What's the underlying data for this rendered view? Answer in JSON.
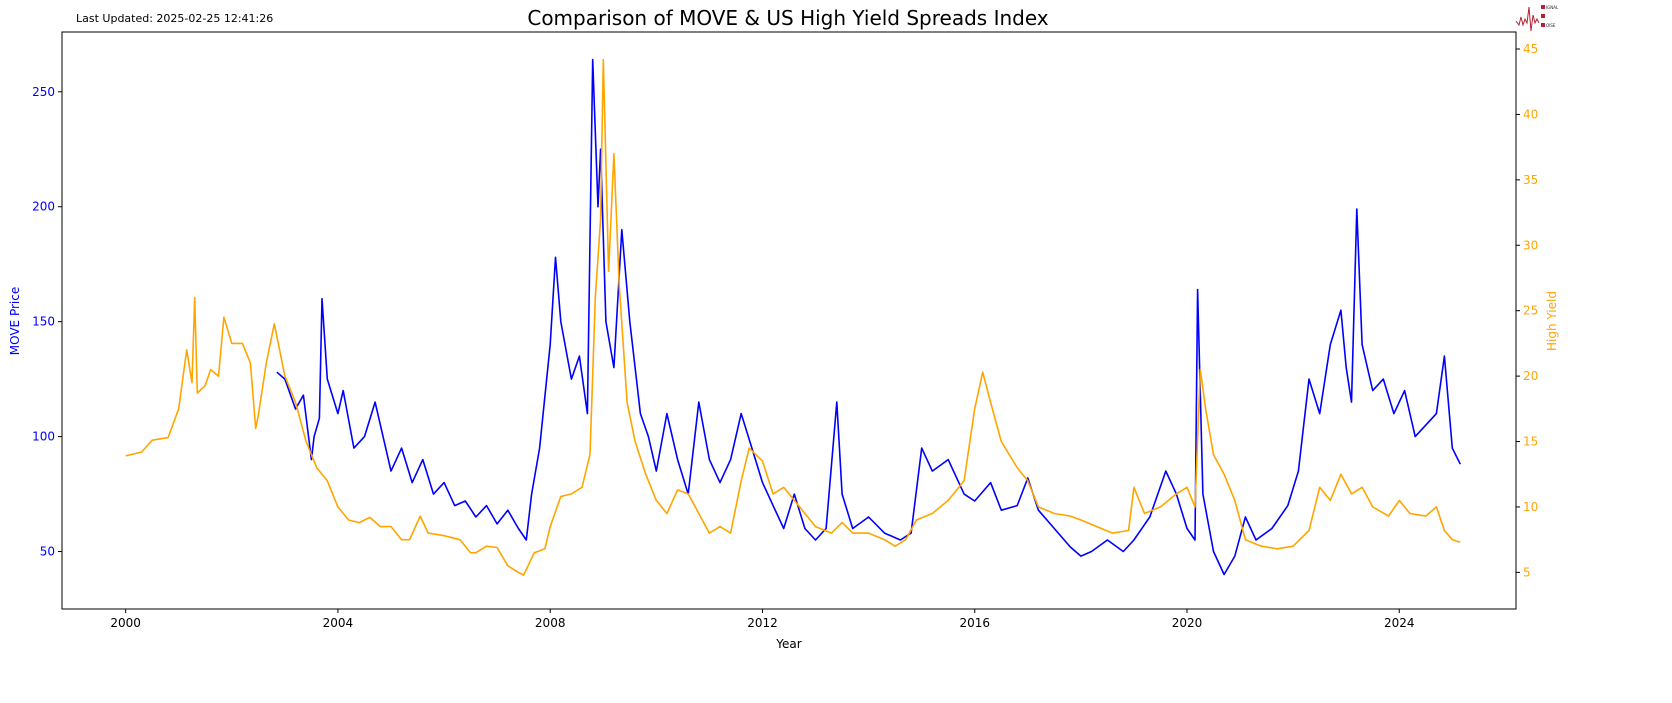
{
  "header": {
    "last_updated": "Last Updated: 2025-02-25 12:41:26"
  },
  "logo": {
    "text": "SIGNAL 2 NOISE",
    "color": "#b22234"
  },
  "chart_data": {
    "type": "line",
    "title": "Comparison of MOVE & US High Yield Spreads Index",
    "xlabel": "Year",
    "ylabel_left": "MOVE Price",
    "ylabel_right": "High Yield",
    "xlim": [
      1998.8,
      2026.2
    ],
    "ylim_left": [
      25,
      276
    ],
    "ylim_right": [
      2.2,
      46.3
    ],
    "x_ticks": [
      "2000",
      "2004",
      "2008",
      "2012",
      "2016",
      "2020",
      "2024"
    ],
    "y_ticks_left": [
      "50",
      "100",
      "150",
      "200",
      "250"
    ],
    "y_ticks_right": [
      "5",
      "10",
      "15",
      "20",
      "25",
      "30",
      "35",
      "40",
      "45"
    ],
    "grid": false,
    "colors": {
      "left_axis": "#0000ff",
      "right_axis": "#ffa500",
      "move": "#0000ff",
      "high_yield": "#ffa500"
    },
    "series": [
      {
        "axis": "left",
        "color": "#0000ff",
        "x": [
          2002.85,
          2003.0,
          2003.2,
          2003.35,
          2003.5,
          2003.55,
          2003.65,
          2003.7,
          2003.8,
          2004.0,
          2004.1,
          2004.3,
          2004.5,
          2004.7,
          2004.9,
          2005.0,
          2005.2,
          2005.4,
          2005.6,
          2005.8,
          2006.0,
          2006.2,
          2006.4,
          2006.6,
          2006.8,
          2007.0,
          2007.2,
          2007.4,
          2007.55,
          2007.65,
          2007.8,
          2008.0,
          2008.1,
          2008.2,
          2008.4,
          2008.55,
          2008.7,
          2008.8,
          2008.9,
          2008.95,
          2009.05,
          2009.2,
          2009.35,
          2009.5,
          2009.7,
          2009.85,
          2010.0,
          2010.2,
          2010.4,
          2010.6,
          2010.8,
          2011.0,
          2011.2,
          2011.4,
          2011.6,
          2011.8,
          2012.0,
          2012.2,
          2012.4,
          2012.6,
          2012.8,
          2013.0,
          2013.2,
          2013.4,
          2013.5,
          2013.7,
          2014.0,
          2014.3,
          2014.6,
          2014.8,
          2015.0,
          2015.2,
          2015.5,
          2015.8,
          2016.0,
          2016.3,
          2016.5,
          2016.8,
          2017.0,
          2017.2,
          2017.5,
          2017.8,
          2018.0,
          2018.2,
          2018.5,
          2018.8,
          2019.0,
          2019.3,
          2019.6,
          2019.8,
          2020.0,
          2020.15,
          2020.2,
          2020.3,
          2020.5,
          2020.7,
          2020.9,
          2021.1,
          2021.3,
          2021.6,
          2021.9,
          2022.1,
          2022.3,
          2022.5,
          2022.7,
          2022.9,
          2023.0,
          2023.1,
          2023.2,
          2023.3,
          2023.5,
          2023.7,
          2023.9,
          2024.1,
          2024.3,
          2024.5,
          2024.7,
          2024.85,
          2025.0,
          2025.15
        ],
        "y": [
          128,
          125,
          112,
          118,
          90,
          100,
          108,
          160,
          125,
          110,
          120,
          95,
          100,
          115,
          95,
          85,
          95,
          80,
          90,
          75,
          80,
          70,
          72,
          65,
          70,
          62,
          68,
          60,
          55,
          75,
          95,
          140,
          178,
          150,
          125,
          135,
          110,
          264,
          200,
          225,
          150,
          130,
          190,
          150,
          110,
          100,
          85,
          110,
          90,
          75,
          115,
          90,
          80,
          90,
          110,
          95,
          80,
          70,
          60,
          75,
          60,
          55,
          60,
          115,
          75,
          60,
          65,
          58,
          55,
          58,
          95,
          85,
          90,
          75,
          72,
          80,
          68,
          70,
          82,
          68,
          60,
          52,
          48,
          50,
          55,
          50,
          55,
          65,
          85,
          75,
          60,
          55,
          164,
          75,
          50,
          40,
          48,
          65,
          55,
          60,
          70,
          85,
          125,
          110,
          140,
          155,
          130,
          115,
          199,
          140,
          120,
          125,
          110,
          120,
          100,
          105,
          110,
          135,
          95,
          88
        ]
      },
      {
        "axis": "right",
        "color": "#ffa500",
        "x": [
          2000.0,
          2000.3,
          2000.5,
          2000.8,
          2001.0,
          2001.15,
          2001.25,
          2001.3,
          2001.35,
          2001.5,
          2001.6,
          2001.75,
          2001.85,
          2002.0,
          2002.2,
          2002.35,
          2002.45,
          2002.5,
          2002.65,
          2002.8,
          2002.9,
          2003.0,
          2003.2,
          2003.4,
          2003.6,
          2003.8,
          2004.0,
          2004.2,
          2004.4,
          2004.6,
          2004.8,
          2005.0,
          2005.2,
          2005.35,
          2005.55,
          2005.7,
          2006.0,
          2006.3,
          2006.5,
          2006.6,
          2006.8,
          2007.0,
          2007.2,
          2007.4,
          2007.5,
          2007.7,
          2007.9,
          2008.0,
          2008.2,
          2008.4,
          2008.6,
          2008.75,
          2008.85,
          2008.95,
          2009.0,
          2009.1,
          2009.2,
          2009.3,
          2009.45,
          2009.6,
          2009.8,
          2010.0,
          2010.2,
          2010.4,
          2010.6,
          2010.8,
          2011.0,
          2011.2,
          2011.4,
          2011.6,
          2011.75,
          2012.0,
          2012.2,
          2012.4,
          2012.6,
          2012.8,
          2013.0,
          2013.3,
          2013.5,
          2013.7,
          2014.0,
          2014.3,
          2014.5,
          2014.7,
          2014.9,
          2015.2,
          2015.5,
          2015.8,
          2016.0,
          2016.15,
          2016.3,
          2016.5,
          2016.8,
          2017.0,
          2017.2,
          2017.5,
          2017.8,
          2018.0,
          2018.3,
          2018.6,
          2018.9,
          2019.0,
          2019.2,
          2019.5,
          2019.8,
          2020.0,
          2020.15,
          2020.25,
          2020.35,
          2020.5,
          2020.7,
          2020.9,
          2021.1,
          2021.4,
          2021.7,
          2022.0,
          2022.3,
          2022.5,
          2022.7,
          2022.9,
          2023.1,
          2023.3,
          2023.5,
          2023.8,
          2024.0,
          2024.2,
          2024.5,
          2024.7,
          2024.85,
          2025.0,
          2025.15
        ],
        "y": [
          13.9,
          14.2,
          15.1,
          15.3,
          17.5,
          22,
          19.5,
          26.0,
          18.7,
          19.3,
          20.5,
          20.0,
          24.5,
          22.5,
          22.5,
          21,
          16,
          17,
          21,
          24,
          22,
          20,
          18,
          15,
          13,
          12,
          10,
          9,
          8.8,
          9.2,
          8.5,
          8.5,
          7.5,
          7.5,
          9.3,
          8,
          7.8,
          7.5,
          6.5,
          6.5,
          7,
          6.9,
          5.5,
          5.0,
          4.8,
          6.5,
          6.8,
          8.5,
          10.8,
          11.0,
          11.5,
          14,
          26,
          32,
          44.2,
          28,
          37,
          27,
          18,
          15,
          12.5,
          10.5,
          9.5,
          11.3,
          11,
          9.5,
          8,
          8.5,
          8.0,
          12,
          14.5,
          13.5,
          11,
          11.5,
          10.5,
          9.5,
          8.5,
          8.0,
          8.8,
          8.0,
          8.0,
          7.5,
          7.0,
          7.5,
          9.0,
          9.5,
          10.5,
          12,
          17.5,
          20.3,
          18,
          15,
          13,
          12,
          10,
          9.5,
          9.3,
          9.0,
          8.5,
          8.0,
          8.2,
          11.5,
          9.5,
          10,
          11.0,
          11.5,
          10.0,
          20.5,
          17.5,
          14.0,
          12.5,
          10.5,
          7.5,
          7.0,
          6.8,
          7.0,
          8.2,
          11.5,
          10.5,
          12.5,
          11,
          11.5,
          10.0,
          9.3,
          10.5,
          9.5,
          9.3,
          10,
          8.2,
          7.5,
          7.3
        ]
      }
    ]
  }
}
